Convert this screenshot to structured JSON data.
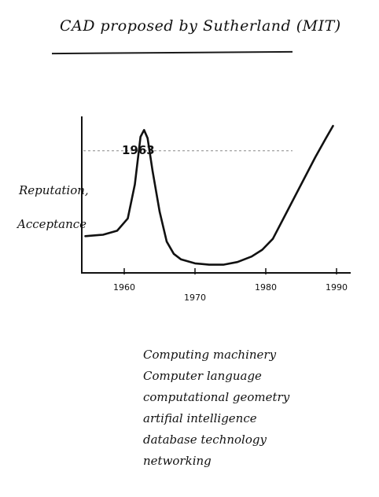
{
  "title": "CAD proposed by Sutherland (MIT)",
  "chart_data": {
    "type": "line",
    "ylabel": [
      "Reputation,",
      "Acceptance"
    ],
    "x_ticks": [
      "1960",
      "1970",
      "1980",
      "1990"
    ],
    "annotations": [
      {
        "text": "1963",
        "x": 1963
      }
    ],
    "reference_line": {
      "style": "dashed",
      "level": 0.78
    },
    "grid": false,
    "xlim": [
      1954,
      1992
    ],
    "ylim": [
      -0.15,
      1.0
    ],
    "series": [
      {
        "x": [
          1954.5,
          1957,
          1959,
          1960.5,
          1961.5,
          1962.3,
          1962.8,
          1963.3,
          1964,
          1965,
          1966,
          1967,
          1968,
          1970,
          1972,
          1974,
          1976,
          1978,
          1979.5,
          1981,
          1983,
          1985,
          1987,
          1988.5,
          1989.5
        ],
        "y": [
          0.12,
          0.13,
          0.16,
          0.25,
          0.5,
          0.85,
          0.9,
          0.84,
          0.6,
          0.3,
          0.08,
          -0.01,
          -0.05,
          -0.08,
          -0.09,
          -0.09,
          -0.07,
          -0.03,
          0.02,
          0.1,
          0.3,
          0.5,
          0.7,
          0.84,
          0.93
        ]
      }
    ]
  },
  "topics": [
    "Computing machinery",
    "Computer language",
    "computational geometry",
    "artifial intelligence",
    "database technology",
    "networking"
  ]
}
